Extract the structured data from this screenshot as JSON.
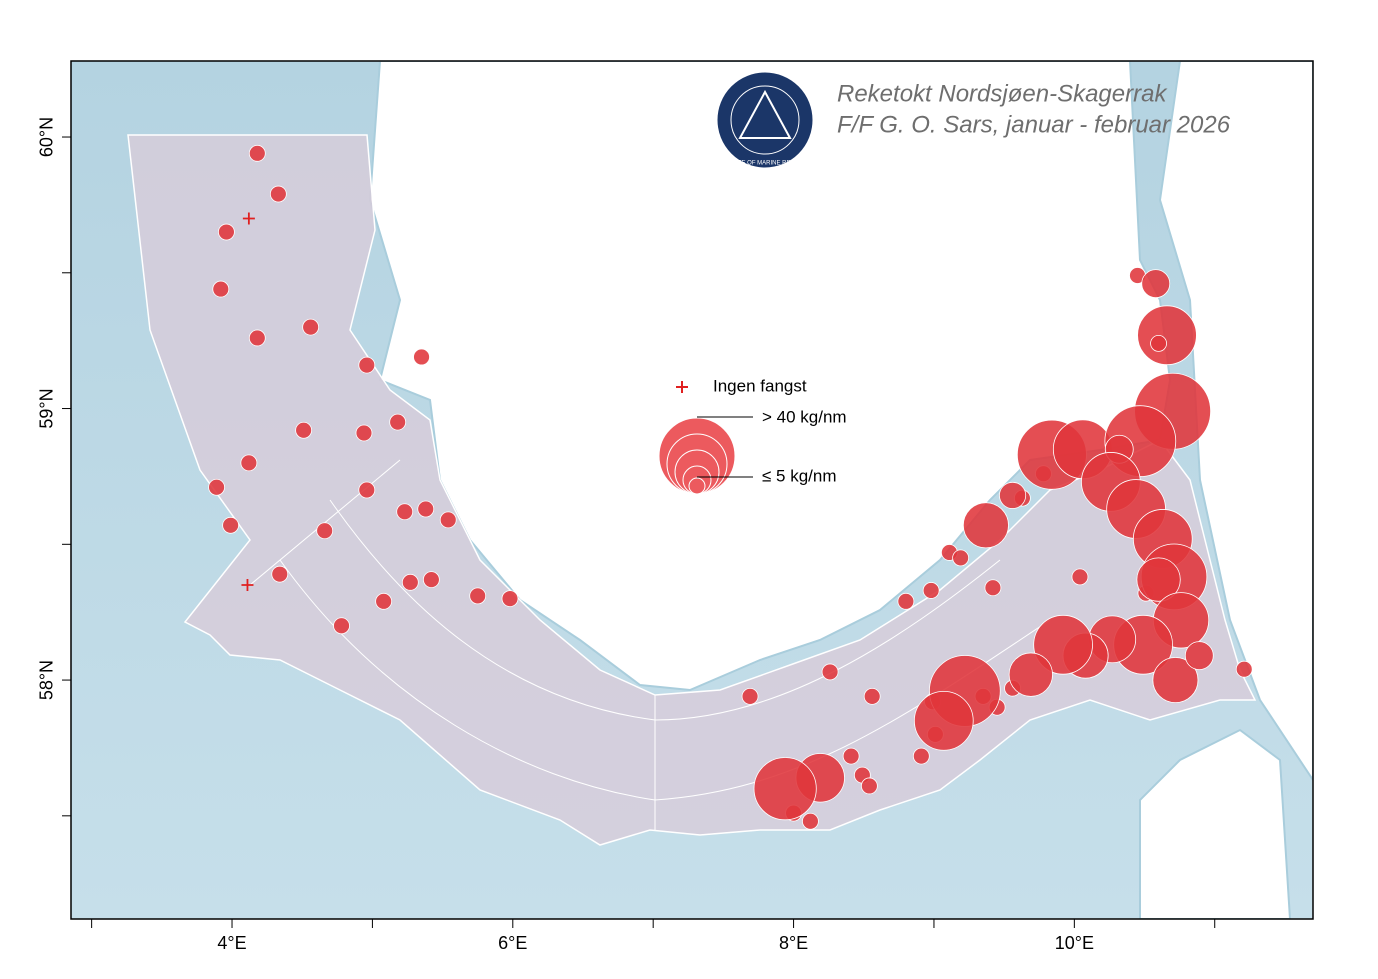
{
  "title": [
    "Reketokt Nordsjøen-Skagerrak",
    "F/F G. O. Sars, januar - februar 2026"
  ],
  "logo_text": "INSTITUTE OF MARINE RESEARCH",
  "legend": {
    "no_catch": "Ingen fangst",
    "max": "> 40 kg/nm",
    "min": "≤ 5 kg/nm"
  },
  "map": {
    "xlim": [
      2.853,
      11.7
    ],
    "ylim": [
      57.12,
      60.28
    ],
    "xticks": [
      {
        "value": 4,
        "label": "4°E"
      },
      {
        "value": 6,
        "label": "6°E"
      },
      {
        "value": 8,
        "label": "8°E"
      },
      {
        "value": 10,
        "label": "10°E"
      }
    ],
    "minor_xticks": [
      3,
      5,
      7,
      9,
      11
    ],
    "yticks": [
      {
        "value": 58,
        "label": "58°N"
      },
      {
        "value": 59,
        "label": "59°N"
      },
      {
        "value": 60,
        "label": "60°N"
      }
    ],
    "minor_yticks": [
      57.5,
      58.5,
      59.5
    ]
  },
  "stations": {
    "lon": [
      4.18,
      4.33,
      3.96,
      3.92,
      4.18,
      4.56,
      4.96,
      5.35,
      4.51,
      4.94,
      5.18,
      4.12,
      3.89,
      4.96,
      3.99,
      4.66,
      5.23,
      5.38,
      5.54,
      4.34,
      5.27,
      5.42,
      5.08,
      4.78,
      5.75,
      5.98,
      7.69,
      8.26,
      8.56,
      8.41,
      8.49,
      8.54,
      8.91,
      8.8,
      8.98,
      9.11,
      9.19,
      9.42,
      10.04,
      10.51,
      11.21,
      10.45,
      8.0,
      8.12,
      9.78,
      9.63,
      8.99,
      9.01,
      9.35,
      9.45,
      9.56,
      10.58,
      10.66,
      10.6,
      10.7,
      9.84,
      10.06,
      10.47,
      10.32,
      10.26,
      10.44,
      10.63,
      10.71,
      10.6,
      10.76,
      10.49,
      10.72,
      10.89,
      10.27,
      10.08,
      9.92,
      9.69,
      9.22,
      9.07,
      9.37,
      9.56,
      8.19,
      7.94
    ],
    "lat": [
      59.94,
      59.79,
      59.65,
      59.44,
      59.26,
      59.3,
      59.16,
      59.19,
      58.92,
      58.91,
      58.95,
      58.8,
      58.71,
      58.7,
      58.57,
      58.55,
      58.62,
      58.63,
      58.59,
      58.39,
      58.36,
      58.37,
      58.29,
      58.2,
      58.31,
      58.3,
      57.94,
      58.03,
      57.94,
      57.72,
      57.65,
      57.61,
      57.72,
      58.29,
      58.33,
      58.47,
      58.45,
      58.34,
      58.38,
      58.32,
      58.04,
      59.49,
      57.51,
      57.48,
      58.76,
      58.67,
      57.92,
      57.8,
      57.94,
      57.9,
      57.97,
      59.46,
      59.27,
      59.24,
      58.99,
      58.83,
      58.85,
      58.88,
      58.85,
      58.73,
      58.63,
      58.52,
      58.38,
      58.37,
      58.22,
      58.13,
      58.0,
      58.09,
      58.15,
      58.09,
      58.13,
      58.02,
      57.96,
      57.85,
      58.57,
      58.68,
      57.64,
      57.6
    ],
    "catch": [
      5,
      5,
      5,
      5,
      5,
      5,
      5,
      5,
      5,
      5,
      5,
      5,
      5,
      5,
      5,
      5,
      5,
      5,
      5,
      5,
      5,
      5,
      5,
      5,
      5,
      5,
      5,
      5,
      5,
      5,
      5,
      5,
      5,
      5,
      5,
      5,
      5,
      5,
      5,
      5,
      5,
      5,
      5,
      5,
      5,
      5,
      5,
      5,
      5,
      5,
      5,
      12,
      30,
      5,
      40,
      36,
      30,
      37,
      12,
      30,
      30,
      30,
      34,
      21,
      28,
      30,
      22,
      12,
      23,
      22,
      30,
      21,
      37,
      30,
      22,
      11,
      24,
      32
    ]
  },
  "no_catch": {
    "lon": [
      4.12,
      4.11
    ],
    "lat": [
      59.7,
      58.35
    ]
  }
}
